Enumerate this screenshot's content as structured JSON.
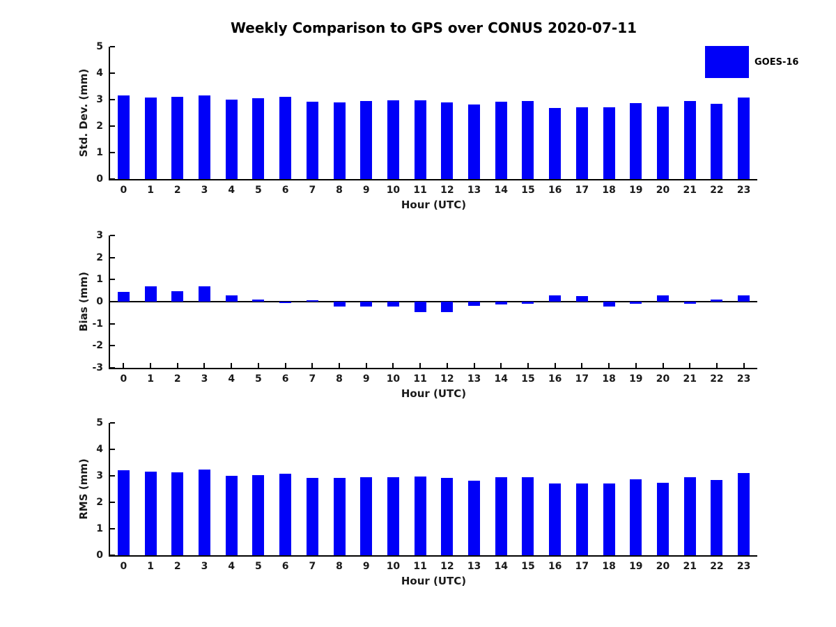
{
  "title": "Weekly Comparison to GPS over CONUS 2020-07-11",
  "legend": {
    "label": "GOES-16",
    "swatch_color": "#0000f8"
  },
  "colors": {
    "bar": "#0000f8",
    "axis": "#000000",
    "text": "#1a1a1a"
  },
  "chart_data": [
    {
      "type": "bar",
      "name": "std-dev",
      "ylabel": "Std. Dev. (mm)",
      "xlabel": "Hour (UTC)",
      "categories": [
        "0",
        "1",
        "2",
        "3",
        "4",
        "5",
        "6",
        "7",
        "8",
        "9",
        "10",
        "11",
        "12",
        "13",
        "14",
        "15",
        "16",
        "17",
        "18",
        "19",
        "20",
        "21",
        "22",
        "23"
      ],
      "values": [
        3.17,
        3.07,
        3.1,
        3.17,
        3.01,
        3.04,
        3.1,
        2.91,
        2.9,
        2.96,
        2.98,
        2.98,
        2.89,
        2.81,
        2.93,
        2.96,
        2.68,
        2.71,
        2.7,
        2.86,
        2.73,
        2.96,
        2.84,
        3.09
      ],
      "ylim": [
        0,
        5
      ],
      "yticks": [
        0,
        1,
        2,
        3,
        4,
        5
      ],
      "x_tick_marks_visible": false,
      "grid": false,
      "series_name": "GOES-16"
    },
    {
      "type": "bar",
      "name": "bias",
      "ylabel": "Bias (mm)",
      "xlabel": "Hour (UTC)",
      "categories": [
        "0",
        "1",
        "2",
        "3",
        "4",
        "5",
        "6",
        "7",
        "8",
        "9",
        "10",
        "11",
        "12",
        "13",
        "14",
        "15",
        "16",
        "17",
        "18",
        "19",
        "20",
        "21",
        "22",
        "23"
      ],
      "values": [
        0.45,
        0.7,
        0.48,
        0.7,
        0.27,
        0.08,
        -0.05,
        0.05,
        -0.22,
        -0.22,
        -0.22,
        -0.48,
        -0.47,
        -0.2,
        -0.13,
        -0.08,
        0.29,
        0.25,
        -0.22,
        -0.1,
        0.29,
        -0.08,
        0.1,
        0.27
      ],
      "ylim": [
        -3,
        3
      ],
      "yticks": [
        -3,
        -2,
        -1,
        0,
        1,
        2,
        3
      ],
      "x_tick_marks_visible": true,
      "grid": false,
      "series_name": "GOES-16"
    },
    {
      "type": "bar",
      "name": "rms",
      "ylabel": "RMS (mm)",
      "xlabel": "Hour (UTC)",
      "categories": [
        "0",
        "1",
        "2",
        "3",
        "4",
        "5",
        "6",
        "7",
        "8",
        "9",
        "10",
        "11",
        "12",
        "13",
        "14",
        "15",
        "16",
        "17",
        "18",
        "19",
        "20",
        "21",
        "22",
        "23"
      ],
      "values": [
        3.2,
        3.15,
        3.13,
        3.25,
        3.01,
        3.02,
        3.07,
        2.91,
        2.91,
        2.96,
        2.96,
        2.98,
        2.91,
        2.81,
        2.95,
        2.96,
        2.7,
        2.71,
        2.7,
        2.88,
        2.75,
        2.95,
        2.85,
        3.11
      ],
      "ylim": [
        0,
        5
      ],
      "yticks": [
        0,
        1,
        2,
        3,
        4,
        5
      ],
      "x_tick_marks_visible": false,
      "grid": false,
      "series_name": "GOES-16"
    }
  ]
}
